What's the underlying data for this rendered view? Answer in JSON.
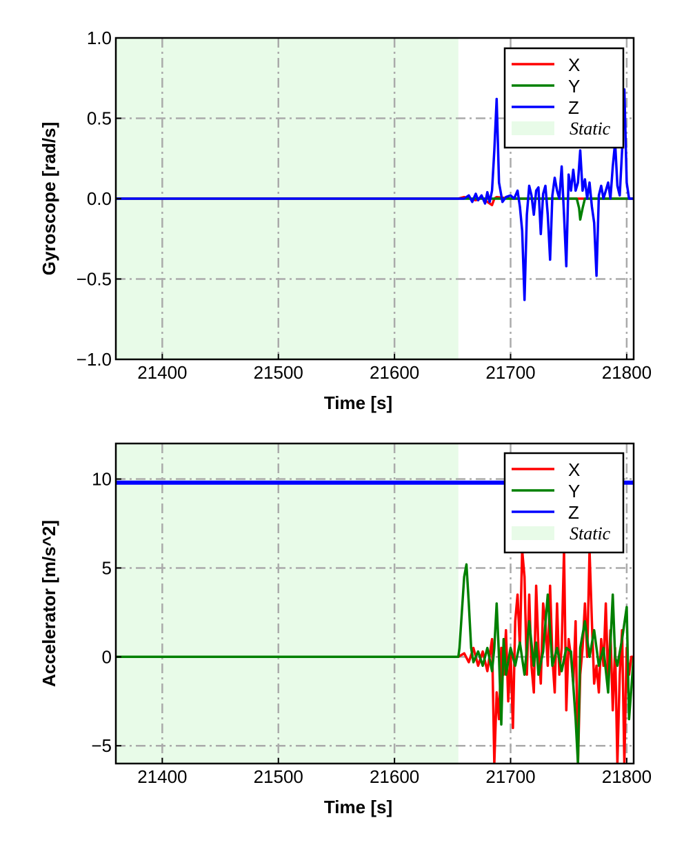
{
  "chart_data": [
    {
      "type": "line",
      "xlabel": "Time [s]",
      "ylabel": "Gyroscope [rad/s]",
      "xlim": [
        21360,
        21806
      ],
      "ylim": [
        -1.0,
        1.0
      ],
      "xticks": [
        21400,
        21500,
        21600,
        21700,
        21800
      ],
      "xtick_labels": [
        "21400",
        "21500",
        "21600",
        "21700",
        "21800"
      ],
      "yticks": [
        -1.0,
        -0.5,
        0.0,
        0.5,
        1.0
      ],
      "ytick_labels": [
        "−1.0",
        "−0.5",
        "0.0",
        "0.5",
        "1.0"
      ],
      "grid": true,
      "legend_position": "top-right",
      "static_region": {
        "label": "Static",
        "x": [
          21360,
          21655
        ],
        "color": "#e8fbe8"
      },
      "series": [
        {
          "name": "X",
          "color": "#ff0000",
          "x": [
            21360,
            21655,
            21660,
            21670,
            21675,
            21680,
            21684,
            21686,
            21688,
            21700,
            21806
          ],
          "y": [
            0,
            0,
            0.01,
            -0.01,
            0.01,
            -0.02,
            -0.04,
            0.0,
            0.01,
            0.0,
            0
          ]
        },
        {
          "name": "Y",
          "color": "#008000",
          "x": [
            21360,
            21655,
            21700,
            21740,
            21757,
            21759,
            21760,
            21762,
            21764,
            21806
          ],
          "y": [
            0,
            0,
            0,
            0,
            0,
            -0.06,
            -0.13,
            -0.06,
            0,
            0
          ]
        },
        {
          "name": "Z",
          "color": "#0000ff",
          "x": [
            21360,
            21655,
            21660,
            21664,
            21667,
            21670,
            21672,
            21675,
            21678,
            21680,
            21682,
            21684,
            21686,
            21688,
            21690,
            21693,
            21696,
            21700,
            21703,
            21706,
            21708,
            21710,
            21712,
            21714,
            21716,
            21718,
            21720,
            21722,
            21724,
            21726,
            21728,
            21730,
            21732,
            21734,
            21736,
            21738,
            21740,
            21742,
            21744,
            21746,
            21748,
            21750,
            21752,
            21754,
            21756,
            21758,
            21760,
            21762,
            21764,
            21766,
            21768,
            21770,
            21772,
            21774,
            21776,
            21778,
            21780,
            21782,
            21784,
            21786,
            21788,
            21790,
            21792,
            21794,
            21796,
            21798,
            21800,
            21802,
            21804,
            21806
          ],
          "y": [
            0,
            0,
            0.0,
            0.02,
            -0.02,
            0.03,
            -0.01,
            0.02,
            -0.03,
            0.04,
            -0.02,
            0.05,
            0.3,
            0.62,
            0.1,
            -0.02,
            0.01,
            0.02,
            0.0,
            0.05,
            -0.05,
            -0.2,
            -0.63,
            -0.1,
            0.08,
            0.02,
            -0.1,
            0.05,
            0.07,
            -0.22,
            0.03,
            0.08,
            -0.1,
            -0.38,
            0.02,
            0.13,
            0.05,
            0.0,
            0.2,
            -0.1,
            -0.42,
            0.15,
            0.05,
            0.18,
            0.05,
            0.1,
            0.3,
            0.05,
            0.12,
            0.0,
            0.1,
            -0.05,
            -0.15,
            -0.48,
            0.02,
            0.08,
            0.0,
            0.05,
            0.1,
            0.0,
            0.2,
            0.35,
            0.08,
            0.02,
            0.3,
            0.68,
            0.1,
            0.0,
            0.0,
            0
          ]
        }
      ]
    },
    {
      "type": "line",
      "xlabel": "Time [s]",
      "ylabel": "Accelerator [m/s^2]",
      "xlim": [
        21360,
        21806
      ],
      "ylim": [
        -6,
        12
      ],
      "xticks": [
        21400,
        21500,
        21600,
        21700,
        21800
      ],
      "xtick_labels": [
        "21400",
        "21500",
        "21600",
        "21700",
        "21800"
      ],
      "yticks": [
        -5,
        0,
        5,
        10
      ],
      "ytick_labels": [
        "−5",
        "0",
        "5",
        "10"
      ],
      "grid": true,
      "legend_position": "top-right",
      "static_region": {
        "label": "Static",
        "x": [
          21360,
          21655
        ],
        "color": "#e8fbe8"
      },
      "series": [
        {
          "name": "X",
          "color": "#ff0000",
          "x": [
            21360,
            21655,
            21660,
            21664,
            21668,
            21672,
            21676,
            21680,
            21684,
            21686,
            21688,
            21690,
            21692,
            21694,
            21696,
            21698,
            21700,
            21702,
            21704,
            21706,
            21708,
            21710,
            21712,
            21714,
            21716,
            21718,
            21720,
            21722,
            21724,
            21726,
            21728,
            21730,
            21732,
            21734,
            21736,
            21738,
            21740,
            21742,
            21744,
            21746,
            21748,
            21750,
            21752,
            21754,
            21756,
            21758,
            21760,
            21762,
            21764,
            21766,
            21768,
            21770,
            21772,
            21774,
            21776,
            21778,
            21780,
            21782,
            21784,
            21786,
            21788,
            21790,
            21792,
            21794,
            21796,
            21798,
            21800,
            21802,
            21804,
            21806
          ],
          "y": [
            0,
            0,
            0.2,
            -0.3,
            0.5,
            -0.5,
            0.3,
            -0.8,
            1.0,
            -6.0,
            -2.0,
            -3.5,
            0.5,
            -1.0,
            1.5,
            -2.5,
            0.3,
            -4.0,
            2.0,
            3.5,
            0.5,
            6.0,
            4.5,
            -1.0,
            3.5,
            -0.5,
            -2.0,
            4.0,
            0.5,
            -1.5,
            3.0,
            2.0,
            -0.5,
            4.0,
            0.0,
            -2.0,
            3.0,
            -1.0,
            0.5,
            6.0,
            -3.0,
            1.0,
            0.0,
            -1.5,
            2.0,
            -6.0,
            -1.0,
            0.5,
            3.0,
            0.0,
            6.0,
            2.0,
            -1.5,
            -0.5,
            -2.0,
            1.0,
            -0.5,
            3.0,
            -1.5,
            1.5,
            -3.0,
            0.5,
            -6.0,
            -1.0,
            1.5,
            -6.0,
            0.5,
            -1.0,
            0.0,
            0
          ]
        },
        {
          "name": "Y",
          "color": "#008000",
          "x": [
            21360,
            21655,
            21656,
            21658,
            21660,
            21662,
            21664,
            21666,
            21668,
            21672,
            21676,
            21680,
            21684,
            21686,
            21688,
            21690,
            21692,
            21694,
            21696,
            21700,
            21704,
            21708,
            21712,
            21716,
            21720,
            21722,
            21724,
            21728,
            21732,
            21736,
            21740,
            21744,
            21748,
            21752,
            21756,
            21758,
            21760,
            21764,
            21768,
            21772,
            21776,
            21780,
            21784,
            21788,
            21790,
            21792,
            21796,
            21800,
            21802,
            21806
          ],
          "y": [
            0,
            0,
            0.5,
            2.5,
            4.5,
            5.2,
            3.0,
            0.5,
            -0.3,
            0.3,
            -0.5,
            0.5,
            -0.8,
            0.5,
            3.0,
            0.0,
            -3.8,
            1.0,
            -1.0,
            0.5,
            -0.5,
            0.8,
            -1.0,
            2.0,
            -0.5,
            0.8,
            -1.0,
            0.3,
            3.5,
            -0.5,
            0.5,
            -0.8,
            0.5,
            0.3,
            -3.5,
            -6.0,
            0.5,
            2.0,
            0.0,
            1.5,
            -0.5,
            0.5,
            -2.0,
            3.5,
            0.0,
            -0.5,
            1.0,
            2.8,
            -3.5,
            0
          ]
        },
        {
          "name": "Z",
          "color": "#0000ff",
          "x": [
            21360,
            21806
          ],
          "y": [
            9.8,
            9.8
          ]
        }
      ]
    }
  ],
  "legend_static_label": "Static"
}
